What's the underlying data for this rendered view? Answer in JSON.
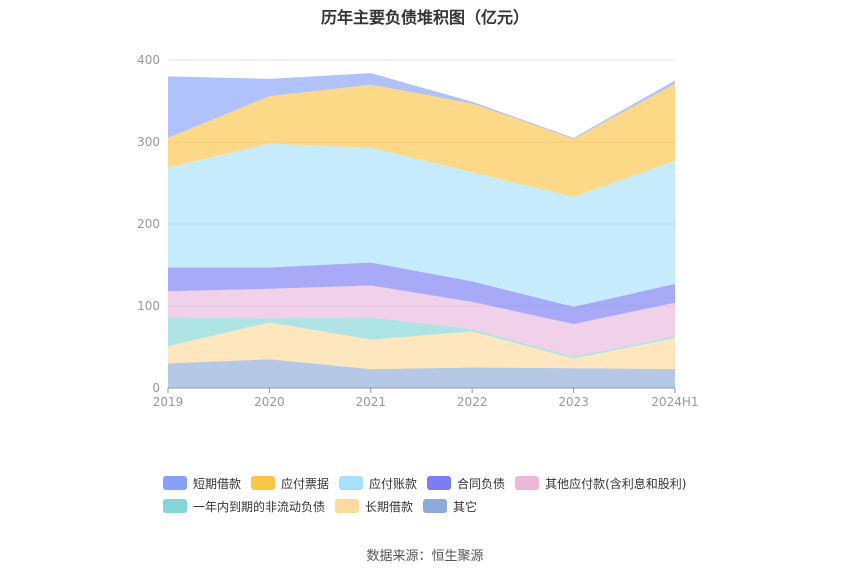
{
  "chart_data": {
    "type": "area",
    "stacked": true,
    "title": "历年主要负债堆积图（亿元）",
    "categories": [
      "2019",
      "2020",
      "2021",
      "2022",
      "2023",
      "2024H1"
    ],
    "ylim": [
      0,
      400
    ],
    "yticks": [
      0,
      100,
      200,
      300,
      400
    ],
    "grid": true,
    "legend_position": "bottom",
    "series": [
      {
        "name": "其它",
        "color": "#8eaad8",
        "values": [
          30,
          35,
          23,
          25,
          24,
          23
        ]
      },
      {
        "name": "长期借款",
        "color": "#fdd99b",
        "values": [
          21,
          45,
          36,
          44,
          12,
          38
        ]
      },
      {
        "name": "一年内到期的非流动负债",
        "color": "#83d6d6",
        "values": [
          35,
          5,
          27,
          3,
          2,
          2
        ]
      },
      {
        "name": "其他应付款(含利息和股利)",
        "color": "#eab8dd",
        "values": [
          32,
          36,
          39,
          33,
          40,
          41
        ]
      },
      {
        "name": "合同负债",
        "color": "#7b7df3",
        "values": [
          29,
          26,
          28,
          25,
          21,
          23
        ]
      },
      {
        "name": "应付账款",
        "color": "#a7e0fa",
        "values": [
          122,
          151,
          140,
          133,
          134,
          150
        ]
      },
      {
        "name": "应付票据",
        "color": "#fbc547",
        "values": [
          36,
          58,
          77,
          84,
          71,
          94
        ]
      },
      {
        "name": "短期借款",
        "color": "#869ffb",
        "values": [
          75,
          21,
          14,
          2,
          1,
          4
        ]
      }
    ]
  },
  "legend": {
    "row1": [
      {
        "name": "短期借款",
        "color": "#869ffb"
      },
      {
        "name": "应付票据",
        "color": "#fbc547"
      },
      {
        "name": "应付账款",
        "color": "#a7e0fa"
      },
      {
        "name": "合同负债",
        "color": "#7b7df3"
      },
      {
        "name": "其他应付款(含利息和股利)",
        "color": "#eab8dd"
      }
    ],
    "row2": [
      {
        "name": "一年内到期的非流动负债",
        "color": "#83d6d6"
      },
      {
        "name": "长期借款",
        "color": "#fdd99b"
      },
      {
        "name": "其它",
        "color": "#8eaad8"
      }
    ]
  },
  "source": "数据来源：恒生聚源"
}
